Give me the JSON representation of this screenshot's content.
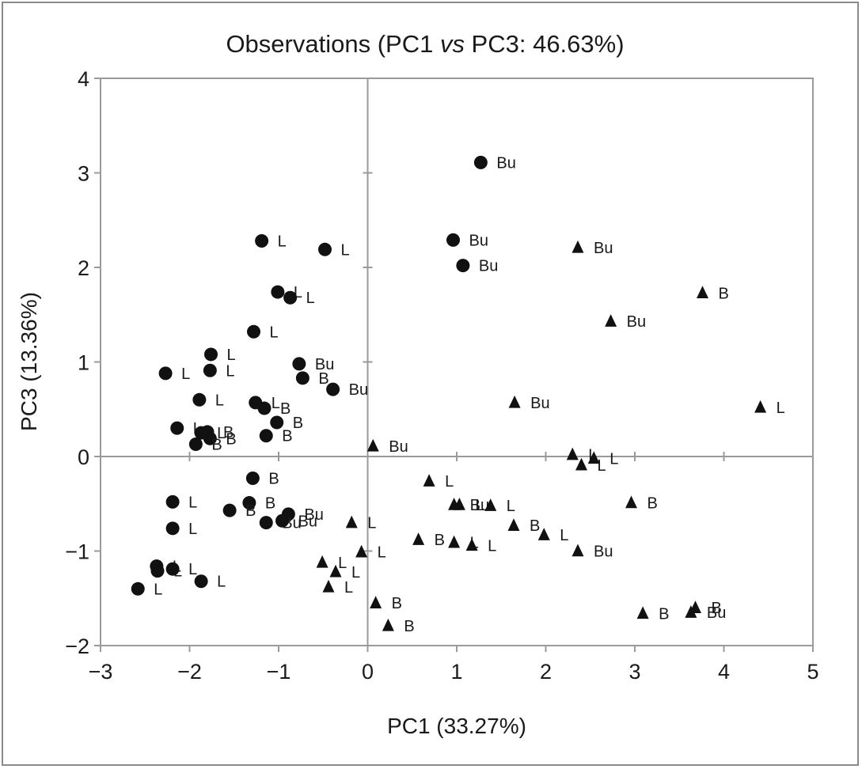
{
  "chart_data": {
    "type": "scatter",
    "title_parts": [
      "Observations (PC1 ",
      "vs",
      " PC3: 46.63%)"
    ],
    "xlabel": "PC1 (33.27%)",
    "ylabel": "PC3 (13.36%)",
    "xlim": [
      -3,
      5
    ],
    "ylim": [
      -2,
      4
    ],
    "x_ticks": [
      "−3",
      "−2",
      "−1",
      "0",
      "1",
      "2",
      "3",
      "4",
      "5"
    ],
    "y_ticks": [
      "−2",
      "−1",
      "0",
      "1",
      "2",
      "3",
      "4"
    ],
    "x_tick_values": [
      -3,
      -2,
      -1,
      0,
      1,
      2,
      3,
      4,
      5
    ],
    "y_tick_values": [
      -2,
      -1,
      0,
      1,
      2,
      3,
      4
    ],
    "grid": false,
    "reference_lines": {
      "x": 0,
      "y": 0
    },
    "series": [
      {
        "marker": "circle",
        "points": [
          {
            "x": 1.27,
            "y": 3.11,
            "label": "Bu"
          },
          {
            "x": -1.19,
            "y": 2.28,
            "label": "L"
          },
          {
            "x": -0.48,
            "y": 2.19,
            "label": "L"
          },
          {
            "x": 0.96,
            "y": 2.29,
            "label": "Bu"
          },
          {
            "x": 1.07,
            "y": 2.02,
            "label": "Bu"
          },
          {
            "x": -1.01,
            "y": 1.74,
            "label": "L"
          },
          {
            "x": -0.87,
            "y": 1.68,
            "label": "L"
          },
          {
            "x": -1.28,
            "y": 1.32,
            "label": "L"
          },
          {
            "x": -1.76,
            "y": 1.08,
            "label": "L"
          },
          {
            "x": -1.77,
            "y": 0.91,
            "label": "L"
          },
          {
            "x": -2.27,
            "y": 0.88,
            "label": "L"
          },
          {
            "x": -0.77,
            "y": 0.98,
            "label": "Bu"
          },
          {
            "x": -0.73,
            "y": 0.83,
            "label": "B"
          },
          {
            "x": -0.39,
            "y": 0.71,
            "label": "Bu"
          },
          {
            "x": -1.89,
            "y": 0.6,
            "label": "L"
          },
          {
            "x": -1.26,
            "y": 0.57,
            "label": "L"
          },
          {
            "x": -1.16,
            "y": 0.51,
            "label": "B"
          },
          {
            "x": -1.02,
            "y": 0.36,
            "label": "B"
          },
          {
            "x": -2.14,
            "y": 0.3,
            "label": "L"
          },
          {
            "x": -1.87,
            "y": 0.25,
            "label": "L"
          },
          {
            "x": -1.8,
            "y": 0.26,
            "label": "B"
          },
          {
            "x": -1.77,
            "y": 0.19,
            "label": "B"
          },
          {
            "x": -1.93,
            "y": 0.13,
            "label": "B"
          },
          {
            "x": -1.14,
            "y": 0.22,
            "label": "B"
          },
          {
            "x": -1.29,
            "y": -0.23,
            "label": "B"
          },
          {
            "x": -2.19,
            "y": -0.48,
            "label": "L"
          },
          {
            "x": -1.33,
            "y": -0.49,
            "label": "B"
          },
          {
            "x": -1.55,
            "y": -0.57,
            "label": "B"
          },
          {
            "x": -0.89,
            "y": -0.61,
            "label": "Bu"
          },
          {
            "x": -2.19,
            "y": -0.76,
            "label": "L"
          },
          {
            "x": -1.14,
            "y": -0.7,
            "label": "Bu"
          },
          {
            "x": -0.96,
            "y": -0.68,
            "label": "Bu"
          },
          {
            "x": -2.37,
            "y": -1.16,
            "label": "L"
          },
          {
            "x": -2.36,
            "y": -1.21,
            "label": "L"
          },
          {
            "x": -2.19,
            "y": -1.19,
            "label": "L"
          },
          {
            "x": -1.87,
            "y": -1.32,
            "label": "L"
          },
          {
            "x": -2.58,
            "y": -1.4,
            "label": "L"
          }
        ]
      },
      {
        "marker": "triangle",
        "points": [
          {
            "x": 2.36,
            "y": 2.21,
            "label": "Bu"
          },
          {
            "x": 3.76,
            "y": 1.73,
            "label": "B"
          },
          {
            "x": 2.73,
            "y": 1.43,
            "label": "Bu"
          },
          {
            "x": 1.65,
            "y": 0.57,
            "label": "Bu"
          },
          {
            "x": 4.41,
            "y": 0.52,
            "label": "L"
          },
          {
            "x": 0.06,
            "y": 0.11,
            "label": "Bu"
          },
          {
            "x": 2.3,
            "y": 0.02,
            "label": "L"
          },
          {
            "x": 2.4,
            "y": -0.09,
            "label": "L"
          },
          {
            "x": 2.54,
            "y": -0.02,
            "label": "L"
          },
          {
            "x": 0.69,
            "y": -0.26,
            "label": "L"
          },
          {
            "x": 0.97,
            "y": -0.51,
            "label": "Bu"
          },
          {
            "x": 1.03,
            "y": -0.51,
            "label": "L"
          },
          {
            "x": 1.38,
            "y": -0.52,
            "label": "L"
          },
          {
            "x": 1.64,
            "y": -0.73,
            "label": "B"
          },
          {
            "x": 2.96,
            "y": -0.49,
            "label": "B"
          },
          {
            "x": -0.18,
            "y": -0.7,
            "label": "L"
          },
          {
            "x": -0.07,
            "y": -1.01,
            "label": "L"
          },
          {
            "x": 0.57,
            "y": -0.88,
            "label": "B"
          },
          {
            "x": 0.97,
            "y": -0.91,
            "label": "L"
          },
          {
            "x": 1.17,
            "y": -0.94,
            "label": "L"
          },
          {
            "x": 1.98,
            "y": -0.83,
            "label": "L"
          },
          {
            "x": 2.36,
            "y": -1.0,
            "label": "Bu"
          },
          {
            "x": -0.51,
            "y": -1.12,
            "label": "L"
          },
          {
            "x": -0.36,
            "y": -1.22,
            "label": "L"
          },
          {
            "x": -0.44,
            "y": -1.38,
            "label": "L"
          },
          {
            "x": 0.09,
            "y": -1.55,
            "label": "B"
          },
          {
            "x": 0.23,
            "y": -1.79,
            "label": "B"
          },
          {
            "x": 3.09,
            "y": -1.66,
            "label": "B"
          },
          {
            "x": 3.68,
            "y": -1.6,
            "label": "B"
          },
          {
            "x": 3.63,
            "y": -1.65,
            "label": "Bu"
          }
        ]
      }
    ]
  }
}
